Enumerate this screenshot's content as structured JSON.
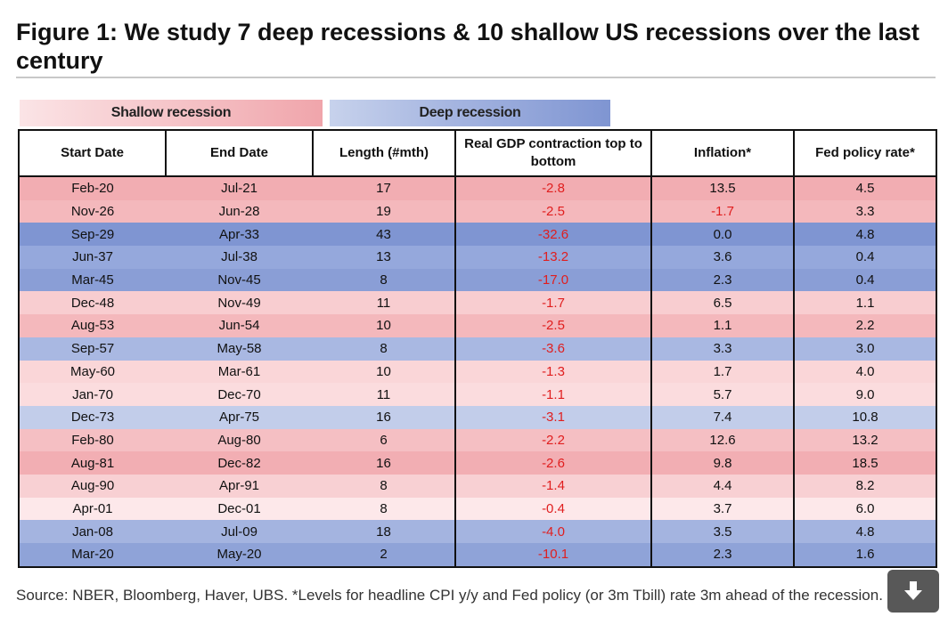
{
  "title": "Figure 1: We study 7 deep recessions & 10 shallow US recessions over the last century",
  "legend": {
    "shallow": "Shallow recession",
    "deep": "Deep recession"
  },
  "colors": {
    "shallow_light": "#fbe4e6",
    "shallow_dark": "#f0a5ab",
    "deep_light": "#c7d2ec",
    "deep_dark": "#7f95d2",
    "negative_text": "#e01e1e"
  },
  "source": "Source: NBER, Bloomberg, Haver, UBS. *Levels for headline CPI y/y and Fed policy (or 3m Tbill) rate 3m ahead of the recession.",
  "chart_data": {
    "type": "table",
    "columns": [
      "Start Date",
      "End Date",
      "Length (#mth)",
      "Real GDP contraction top to bottom",
      "Inflation*",
      "Fed policy rate*"
    ],
    "rows": [
      {
        "type": "shallow",
        "shade": "#f2adb2",
        "values": [
          "Feb-20",
          "Jul-21",
          "17",
          "-2.8",
          "13.5",
          "4.5"
        ]
      },
      {
        "type": "shallow",
        "shade": "#f4b8bc",
        "values": [
          "Nov-26",
          "Jun-28",
          "19",
          "-2.5",
          "-1.7",
          "3.3"
        ]
      },
      {
        "type": "deep",
        "shade": "#7f95d2",
        "values": [
          "Sep-29",
          "Apr-33",
          "43",
          "-32.6",
          "0.0",
          "4.8"
        ]
      },
      {
        "type": "deep",
        "shade": "#95a8dc",
        "values": [
          "Jun-37",
          "Jul-38",
          "13",
          "-13.2",
          "3.6",
          "0.4"
        ]
      },
      {
        "type": "deep",
        "shade": "#8a9ed6",
        "values": [
          "Mar-45",
          "Nov-45",
          "8",
          "-17.0",
          "2.3",
          "0.4"
        ]
      },
      {
        "type": "shallow",
        "shade": "#f8cdd0",
        "values": [
          "Dec-48",
          "Nov-49",
          "11",
          "-1.7",
          "6.5",
          "1.1"
        ]
      },
      {
        "type": "shallow",
        "shade": "#f4b8bc",
        "values": [
          "Aug-53",
          "Jun-54",
          "10",
          "-2.5",
          "1.1",
          "2.2"
        ]
      },
      {
        "type": "deep",
        "shade": "#a9b8e2",
        "values": [
          "Sep-57",
          "May-58",
          "8",
          "-3.6",
          "3.3",
          "3.0"
        ]
      },
      {
        "type": "shallow",
        "shade": "#fad6d8",
        "values": [
          "May-60",
          "Mar-61",
          "10",
          "-1.3",
          "1.7",
          "4.0"
        ]
      },
      {
        "type": "shallow",
        "shade": "#fbdcde",
        "values": [
          "Jan-70",
          "Dec-70",
          "11",
          "-1.1",
          "5.7",
          "9.0"
        ]
      },
      {
        "type": "deep",
        "shade": "#c2cdea",
        "values": [
          "Dec-73",
          "Apr-75",
          "16",
          "-3.1",
          "7.4",
          "10.8"
        ]
      },
      {
        "type": "shallow",
        "shade": "#f5bfc3",
        "values": [
          "Feb-80",
          "Aug-80",
          "6",
          "-2.2",
          "12.6",
          "13.2"
        ]
      },
      {
        "type": "shallow",
        "shade": "#f2aeb3",
        "values": [
          "Aug-81",
          "Dec-82",
          "16",
          "-2.6",
          "9.8",
          "18.5"
        ]
      },
      {
        "type": "shallow",
        "shade": "#f8d0d3",
        "values": [
          "Aug-90",
          "Apr-91",
          "8",
          "-1.4",
          "4.4",
          "8.2"
        ]
      },
      {
        "type": "shallow",
        "shade": "#fde8ea",
        "values": [
          "Apr-01",
          "Dec-01",
          "8",
          "-0.4",
          "3.7",
          "6.0"
        ]
      },
      {
        "type": "deep",
        "shade": "#a4b4e0",
        "values": [
          "Jan-08",
          "Jul-09",
          "18",
          "-4.0",
          "3.5",
          "4.8"
        ]
      },
      {
        "type": "deep",
        "shade": "#8fa3d8",
        "values": [
          "Mar-20",
          "May-20",
          "2",
          "-10.1",
          "2.3",
          "1.6"
        ]
      }
    ]
  }
}
